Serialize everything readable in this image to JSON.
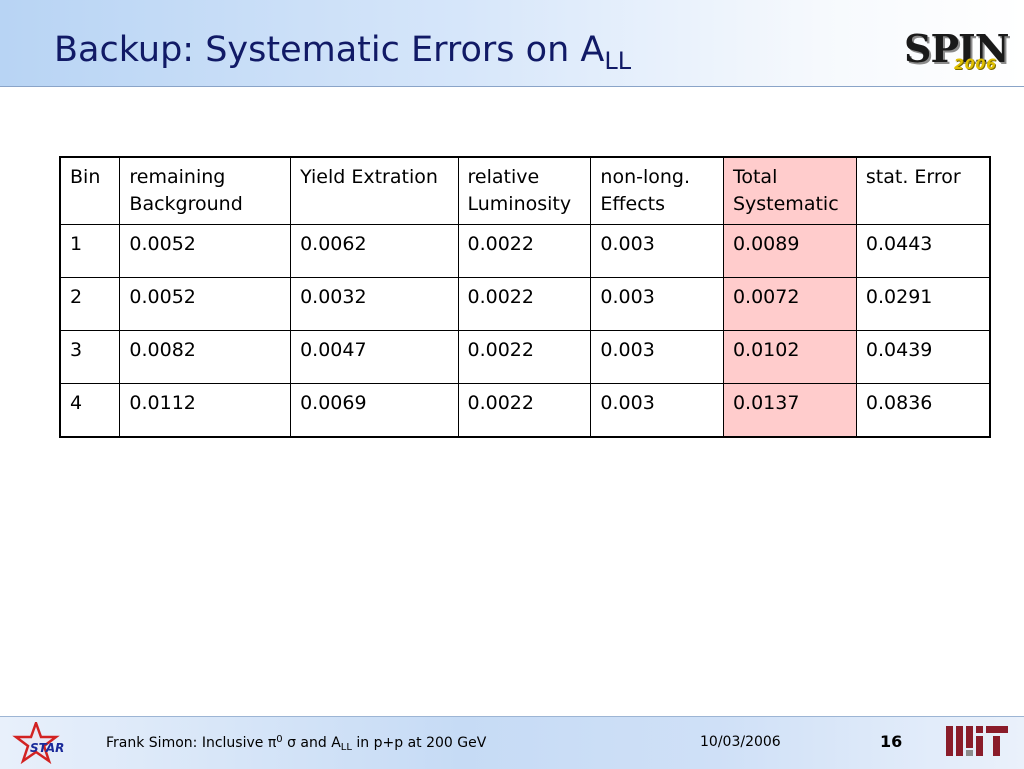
{
  "slide": {
    "title_main": "Backup: Systematic Errors on A",
    "title_sub": "LL",
    "page_number": "16"
  },
  "logos": {
    "spin_text": "SPIN",
    "spin_year": "2006",
    "star_text": "STAR"
  },
  "table": {
    "headers": [
      [
        "Bin"
      ],
      [
        "remaining",
        "Background"
      ],
      [
        "Yield Extration"
      ],
      [
        "relative",
        "Luminosity"
      ],
      [
        "non-long.",
        "Effects"
      ],
      [
        "Total",
        "Systematic"
      ],
      [
        "stat. Error"
      ]
    ],
    "rows": [
      [
        "1",
        "0.0052",
        "0.0062",
        "0.0022",
        "0.003",
        "0.0089",
        "0.0443"
      ],
      [
        "2",
        "0.0052",
        "0.0032",
        "0.0022",
        "0.003",
        "0.0072",
        "0.0291"
      ],
      [
        "3",
        "0.0082",
        "0.0047",
        "0.0022",
        "0.003",
        "0.0102",
        "0.0439"
      ],
      [
        "4",
        "0.0112",
        "0.0069",
        "0.0022",
        "0.003",
        "0.0137",
        "0.0836"
      ]
    ],
    "highlight_color": "#ffcccc"
  },
  "footer": {
    "presenter": "Frank Simon: Inclusive ",
    "pi_symbol": "π",
    "pi_sup": "0",
    "sigma_symbol": "σ",
    "and_text": " and A",
    "all_sub": "LL",
    "tail": " in p+p at 200 GeV",
    "date": "10/03/2006"
  },
  "colors": {
    "title": "#111a66",
    "header_gradient_start": "#b8d4f4",
    "footer_gradient_mid": "#c6dbf5"
  },
  "icons": {
    "star_logo": "star-experiment-logo",
    "mit_logo": "mit-logo",
    "spin_logo": "spin2006-logo"
  }
}
